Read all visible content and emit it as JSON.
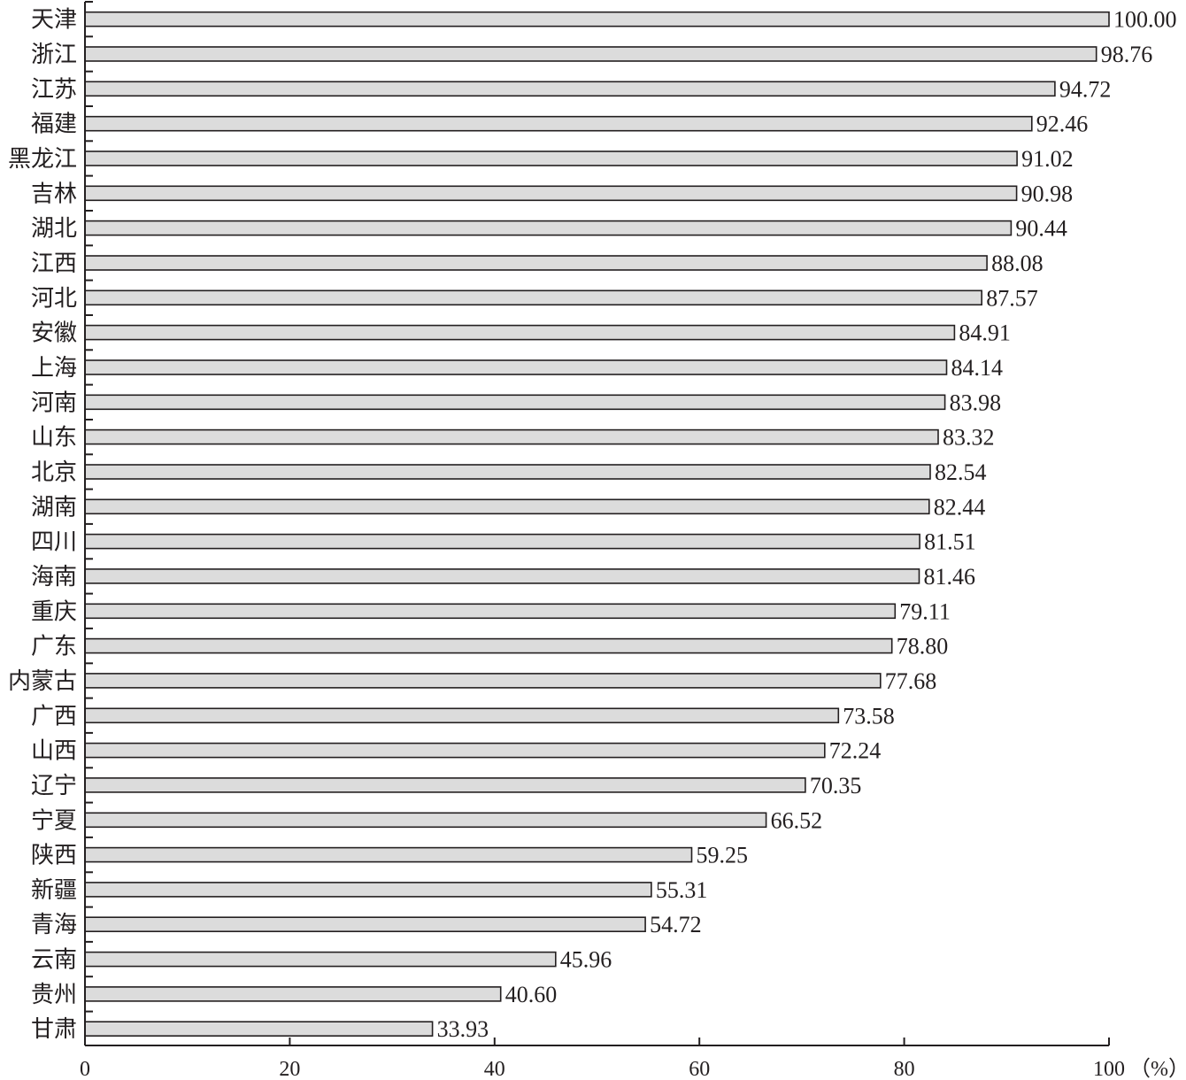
{
  "chart_data": {
    "type": "bar",
    "orientation": "horizontal",
    "categories": [
      "天津",
      "浙江",
      "江苏",
      "福建",
      "黑龙江",
      "吉林",
      "湖北",
      "江西",
      "河北",
      "安徽",
      "上海",
      "河南",
      "山东",
      "北京",
      "湖南",
      "四川",
      "海南",
      "重庆",
      "广东",
      "内蒙古",
      "广西",
      "山西",
      "辽宁",
      "宁夏",
      "陕西",
      "新疆",
      "青海",
      "云南",
      "贵州",
      "甘肃"
    ],
    "values": [
      100.0,
      98.76,
      94.72,
      92.46,
      91.02,
      90.98,
      90.44,
      88.08,
      87.57,
      84.91,
      84.14,
      83.98,
      83.32,
      82.54,
      82.44,
      81.51,
      81.46,
      79.11,
      78.8,
      77.68,
      73.58,
      72.24,
      70.35,
      66.52,
      59.25,
      55.31,
      54.72,
      45.96,
      40.6,
      33.93
    ],
    "value_labels": [
      "100.00",
      "98.76",
      "94.72",
      "92.46",
      "91.02",
      "90.98",
      "90.44",
      "88.08",
      "87.57",
      "84.91",
      "84.14",
      "83.98",
      "83.32",
      "82.54",
      "82.44",
      "81.51",
      "81.46",
      "79.11",
      "78.80",
      "77.68",
      "73.58",
      "72.24",
      "70.35",
      "66.52",
      "59.25",
      "55.31",
      "54.72",
      "45.96",
      "40.60",
      "33.93"
    ],
    "xticks": [
      0,
      20,
      40,
      60,
      80,
      100
    ],
    "xtick_labels": [
      "0",
      "20",
      "40",
      "60",
      "80",
      "100"
    ],
    "xunit": "（%）",
    "xlim": [
      0,
      100
    ],
    "title": "",
    "xlabel": "",
    "ylabel": "",
    "grid": false,
    "colors": {
      "bar_fill": "#dcdcdc",
      "bar_stroke": "#231f20",
      "axis": "#231f20"
    }
  }
}
